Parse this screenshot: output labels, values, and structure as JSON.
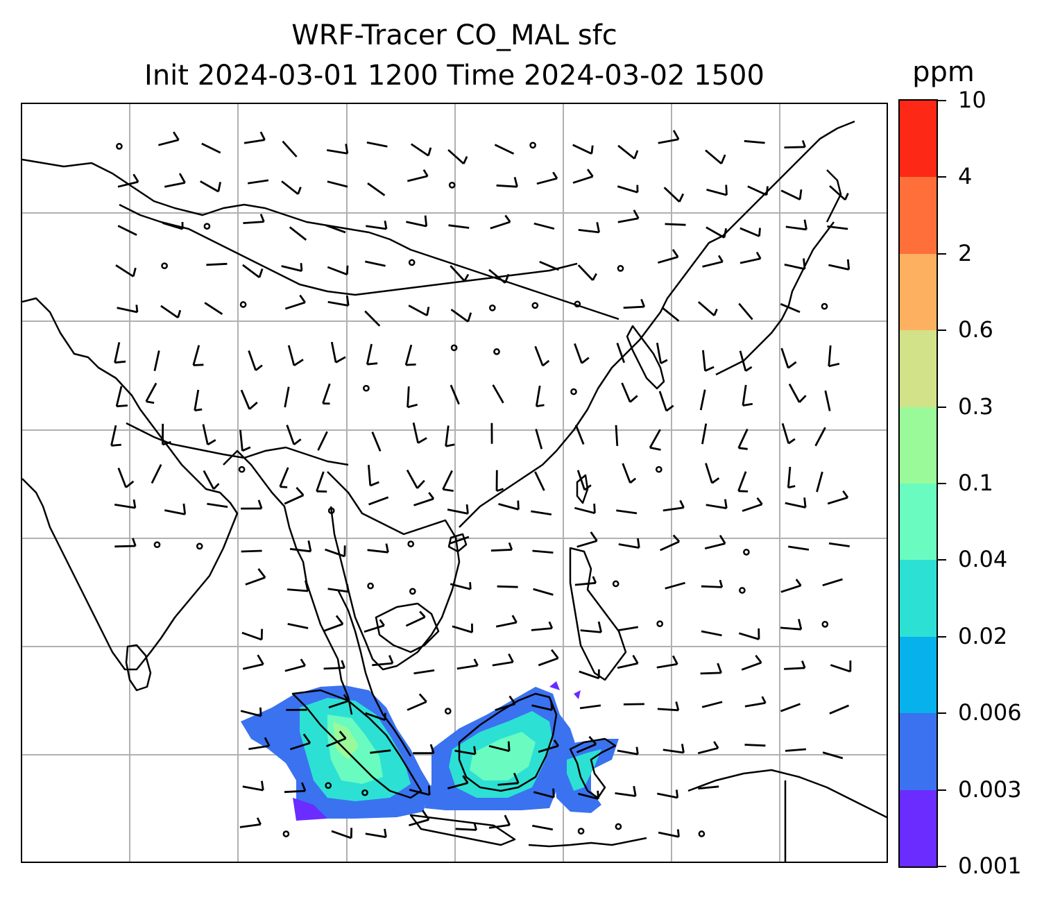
{
  "title": {
    "line1": "WRF-Tracer CO_MAL sfc",
    "line2": "Init 2024-03-01 1200 Time 2024-03-02 1500"
  },
  "colorbar": {
    "unit": "ppm",
    "ticks": [
      "0.001",
      "0.003",
      "0.006",
      "0.02",
      "0.04",
      "0.1",
      "0.3",
      "0.6",
      "2",
      "4",
      "10"
    ],
    "colors": [
      "#6a2cff",
      "#3a72f0",
      "#07b1ec",
      "#2de0d4",
      "#69fbc0",
      "#9afa9a",
      "#d2e288",
      "#fdb160",
      "#fe6f3a",
      "#fe2817"
    ]
  },
  "map": {
    "gridlines": true,
    "coastline_color": "#000000",
    "gridline_color": "#b0b0b0",
    "field": "CO_MAL tracer concentration (surface)",
    "wind_barbs": true
  }
}
